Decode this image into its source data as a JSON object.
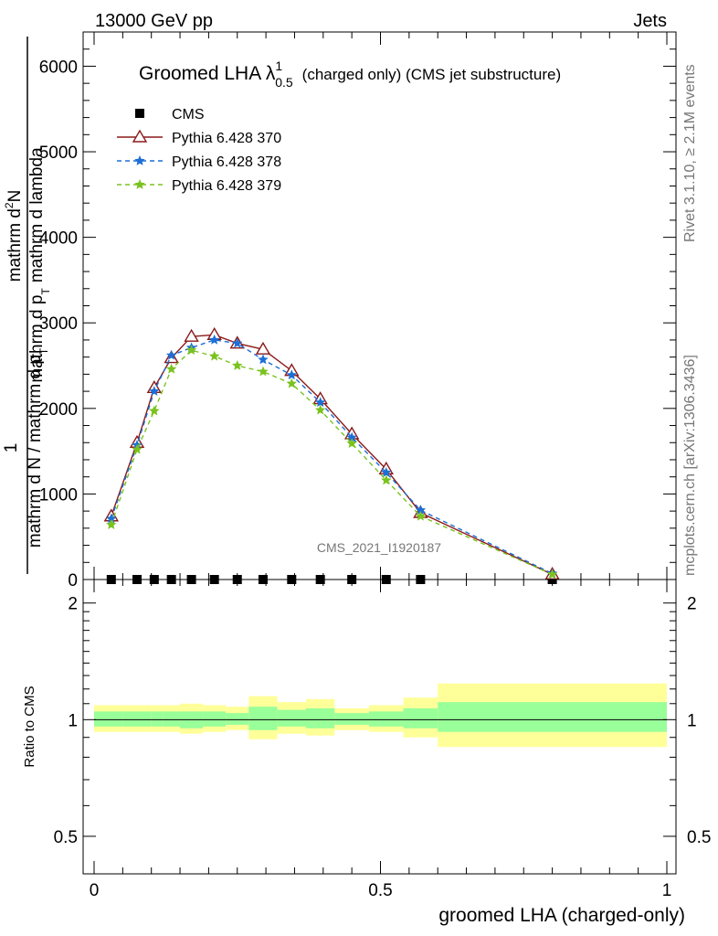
{
  "header": {
    "energy_label": "13000 GeV pp",
    "process_label": "Jets"
  },
  "side_labels": {
    "rivet": "Rivet 3.1.10, ≥ 2.1M events",
    "mcplots": "mcplots.cern.ch [arXiv:1306.3436]"
  },
  "watermark": "CMS_2021_I1920187",
  "chart_data": [
    {
      "type": "line",
      "title": "Groomed LHA λ",
      "title_sup": "1",
      "title_sub": "0.5",
      "title_suffix": "(charged only) (CMS jet substructure)",
      "ylabel_numer": "1",
      "ylabel_denom": "mathrm d N / mathrm d p",
      "ylabel_denom_sub": "T",
      "ylabel_numer2": "mathrm d",
      "ylabel_numer2_sup": "2",
      "ylabel_numer2_n": "N",
      "ylabel_denom2": "mathrm d p",
      "ylabel_denom2_sub": "T",
      "ylabel_denom2_rest": "mathrm d lambda",
      "xlim": [
        0,
        1
      ],
      "ylim": [
        0,
        6400
      ],
      "yticks": [
        0,
        1000,
        2000,
        3000,
        4000,
        5000,
        6000
      ],
      "ytick_labels": [
        "0",
        "1000",
        "2000",
        "3000",
        "4000",
        "5000",
        "6000"
      ],
      "legend_position": "top-left",
      "series": [
        {
          "name": "CMS",
          "color": "#000000",
          "marker": "square",
          "x": [
            0.03,
            0.075,
            0.105,
            0.135,
            0.17,
            0.21,
            0.25,
            0.295,
            0.345,
            0.395,
            0.45,
            0.51,
            0.57,
            0.8
          ],
          "y": [
            0,
            0,
            0,
            0,
            0,
            0,
            0,
            0,
            0,
            0,
            0,
            0,
            0,
            0
          ]
        },
        {
          "name": "Pythia 6.428 370",
          "color": "#8b1a1a",
          "marker": "triangle-open",
          "dash": "solid",
          "x": [
            0.03,
            0.075,
            0.105,
            0.135,
            0.17,
            0.21,
            0.25,
            0.295,
            0.345,
            0.395,
            0.45,
            0.51,
            0.57,
            0.8
          ],
          "y": [
            740,
            1600,
            2240,
            2590,
            2840,
            2860,
            2760,
            2690,
            2440,
            2110,
            1700,
            1290,
            780,
            60
          ]
        },
        {
          "name": "Pythia 6.428 378",
          "color": "#1c6fd6",
          "marker": "star",
          "dash": "dashed",
          "x": [
            0.03,
            0.075,
            0.105,
            0.135,
            0.17,
            0.21,
            0.25,
            0.295,
            0.345,
            0.395,
            0.45,
            0.51,
            0.57,
            0.8
          ],
          "y": [
            710,
            1570,
            2200,
            2620,
            2710,
            2800,
            2760,
            2570,
            2390,
            2070,
            1660,
            1250,
            810,
            70
          ]
        },
        {
          "name": "Pythia 6.428 379",
          "color": "#7ac21e",
          "marker": "star",
          "dash": "dashed",
          "x": [
            0.03,
            0.075,
            0.105,
            0.135,
            0.17,
            0.21,
            0.25,
            0.295,
            0.345,
            0.395,
            0.45,
            0.51,
            0.57,
            0.8
          ],
          "y": [
            640,
            1520,
            1970,
            2460,
            2680,
            2610,
            2500,
            2430,
            2290,
            1980,
            1590,
            1160,
            740,
            60
          ]
        }
      ]
    },
    {
      "type": "area",
      "ylabel": "Ratio to CMS",
      "xlabel": "groomed LHA (charged-only)",
      "xlim": [
        0,
        1
      ],
      "ylim": [
        0.4,
        2.3
      ],
      "log_scale": true,
      "xticks": [
        0,
        0.5,
        1
      ],
      "xtick_labels": [
        "0",
        "0.5",
        "1"
      ],
      "yticks": [
        0.5,
        1,
        2
      ],
      "ytick_labels": [
        "0.5",
        "1",
        "2"
      ],
      "bin_edges": [
        0,
        0.05,
        0.1,
        0.12,
        0.15,
        0.19,
        0.23,
        0.27,
        0.32,
        0.37,
        0.42,
        0.48,
        0.54,
        0.6,
        1.0
      ],
      "stat_band": [
        [
          0.96,
          1.05
        ],
        [
          0.96,
          1.05
        ],
        [
          0.96,
          1.05
        ],
        [
          0.96,
          1.05
        ],
        [
          0.95,
          1.05
        ],
        [
          0.96,
          1.05
        ],
        [
          0.97,
          1.04
        ],
        [
          0.94,
          1.08
        ],
        [
          0.96,
          1.06
        ],
        [
          0.95,
          1.07
        ],
        [
          0.97,
          1.04
        ],
        [
          0.96,
          1.05
        ],
        [
          0.95,
          1.07
        ],
        [
          0.93,
          1.11
        ]
      ],
      "total_band": [
        [
          0.93,
          1.09
        ],
        [
          0.93,
          1.09
        ],
        [
          0.93,
          1.09
        ],
        [
          0.93,
          1.09
        ],
        [
          0.92,
          1.1
        ],
        [
          0.93,
          1.09
        ],
        [
          0.94,
          1.08
        ],
        [
          0.89,
          1.15
        ],
        [
          0.92,
          1.11
        ],
        [
          0.91,
          1.13
        ],
        [
          0.94,
          1.07
        ],
        [
          0.93,
          1.09
        ],
        [
          0.9,
          1.14
        ],
        [
          0.85,
          1.24
        ]
      ],
      "colors": {
        "stat": "#99ff99",
        "total": "#ffff99"
      }
    }
  ]
}
